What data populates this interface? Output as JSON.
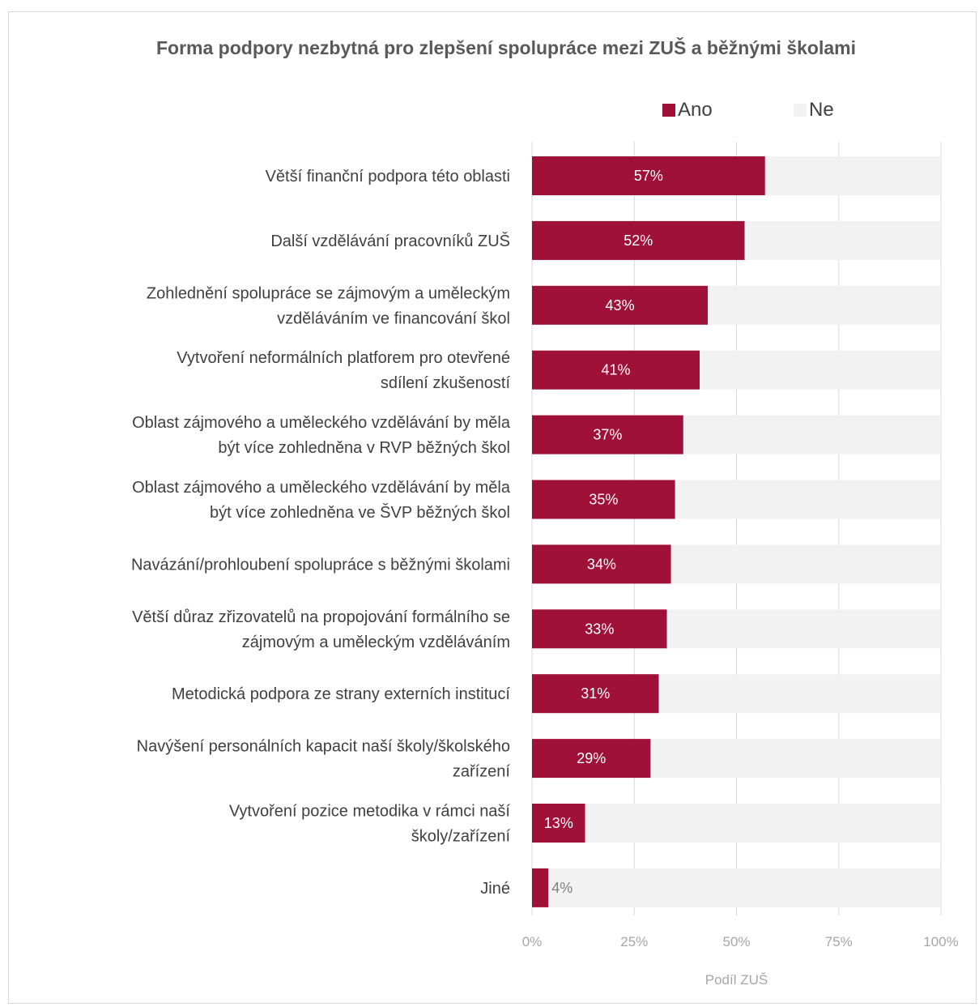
{
  "chart_data": {
    "type": "bar",
    "orientation": "horizontal",
    "stacked": true,
    "title": "Forma podpory nezbytná pro zlepšení spolupráce mezi ZUŠ a běžnými školami",
    "xlabel": "Podíl ZUŠ",
    "ylabel": "",
    "xlim": [
      0,
      100
    ],
    "x_ticks": [
      "0%",
      "25%",
      "50%",
      "75%",
      "100%"
    ],
    "grid": true,
    "legend_position": "top-right",
    "categories": [
      "Větší finanční podpora této oblasti",
      "Další vzdělávání pracovníků ZUŠ",
      "Zohlednění spolupráce se zájmovým a uměleckým vzděláváním ve financování škol",
      "Vytvoření neformálních platforem pro otevřené sdílení zkušeností",
      "Oblast zájmového a uměleckého vzdělávání by měla být více zohledněna v RVP běžných škol",
      "Oblast zájmového a uměleckého vzdělávání by měla být více zohledněna ve ŠVP běžných škol",
      "Navázání/prohloubení spolupráce s běžnými školami",
      "Větší důraz zřizovatelů na propojování formálního se zájmovým a uměleckým vzděláváním",
      "Metodická podpora ze strany externích institucí",
      "Navýšení personálních kapacit naší školy/školského zařízení",
      "Vytvoření pozice metodika v rámci naší školy/zařízení",
      "Jiné"
    ],
    "category_lines": [
      [
        "Větší finanční podpora této oblasti"
      ],
      [
        "Další vzdělávání pracovníků ZUŠ"
      ],
      [
        "Zohlednění spolupráce se zájmovým a uměleckým",
        "vzděláváním ve financování škol"
      ],
      [
        "Vytvoření neformálních platforem pro otevřené",
        "sdílení zkušeností"
      ],
      [
        "Oblast zájmového a uměleckého vzdělávání by měla",
        "být více zohledněna v RVP běžných škol"
      ],
      [
        "Oblast zájmového a uměleckého vzdělávání by měla",
        "být více zohledněna ve ŠVP běžných škol"
      ],
      [
        "Navázání/prohloubení spolupráce s běžnými školami"
      ],
      [
        "Větší důraz zřizovatelů na propojování formálního se",
        "zájmovým a uměleckým vzděláváním"
      ],
      [
        "Metodická podpora ze strany externích institucí"
      ],
      [
        "Navýšení personálních kapacit naší školy/školského",
        "zařízení"
      ],
      [
        "Vytvoření pozice metodika v rámci naší",
        "školy/zařízení"
      ],
      [
        "Jiné"
      ]
    ],
    "series": [
      {
        "name": "Ano",
        "color": "#a0113a",
        "values": [
          57,
          52,
          43,
          41,
          37,
          35,
          34,
          33,
          31,
          29,
          13,
          4
        ],
        "labels": [
          "57%",
          "52%",
          "43%",
          "41%",
          "37%",
          "35%",
          "34%",
          "33%",
          "31%",
          "29%",
          "13%",
          "4%"
        ]
      },
      {
        "name": "Ne",
        "color": "#f2f2f2",
        "values": [
          43,
          48,
          57,
          59,
          63,
          65,
          66,
          67,
          69,
          71,
          87,
          96
        ]
      }
    ]
  }
}
